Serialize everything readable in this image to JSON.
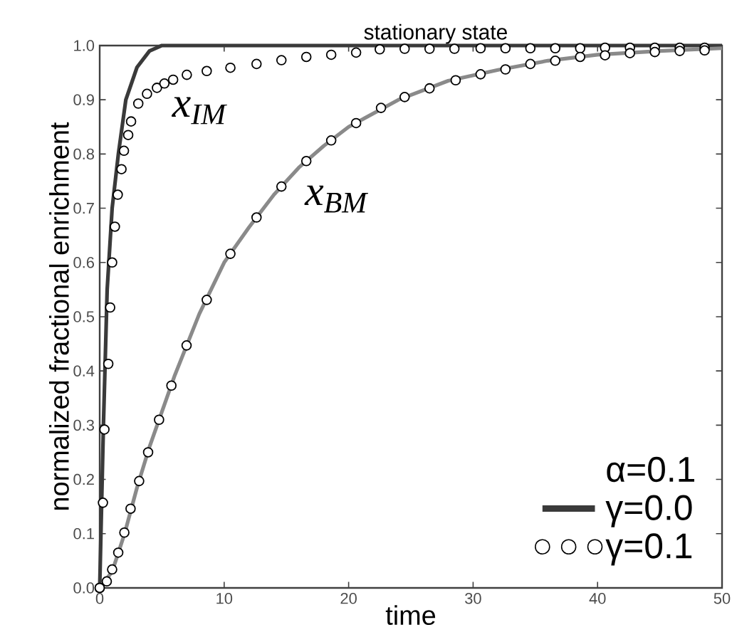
{
  "chart_data": {
    "type": "line",
    "xlabel": "time",
    "ylabel": "normalized fractional enrichment",
    "legend_title": "α=0.1",
    "legend": "bottom right",
    "grid": false,
    "xlim": [
      0,
      50
    ],
    "ylim": [
      0,
      1
    ],
    "xticks": [
      0,
      10,
      20,
      30,
      40,
      50
    ],
    "yticks": [
      {
        "value": 0,
        "label": "0.0"
      },
      0.1,
      0.2,
      0.3,
      0.4,
      0.5,
      0.6,
      0.7,
      0.8,
      0.9,
      {
        "value": 1,
        "label": "1.0"
      }
    ],
    "series": [
      {
        "name": "γ=0.0",
        "color": "#3a3a3a",
        "marker": "none",
        "x": [
          0,
          0.3,
          0.6,
          1.0,
          1.5,
          2.1,
          3,
          4,
          5,
          50
        ],
        "values": [
          0,
          0.3,
          0.55,
          0.7,
          0.8,
          0.9,
          0.96,
          0.99,
          1.0,
          1.0
        ]
      },
      {
        "color": "#8a8a8a",
        "marker": "none",
        "x": [
          0,
          1,
          2,
          3,
          4,
          5,
          6,
          8,
          10,
          12,
          14,
          16,
          18,
          20,
          24,
          28,
          32,
          36,
          40,
          45,
          50
        ],
        "values": [
          0,
          0.03,
          0.1,
          0.185,
          0.26,
          0.325,
          0.39,
          0.505,
          0.6,
          0.665,
          0.725,
          0.775,
          0.815,
          0.85,
          0.9,
          0.935,
          0.955,
          0.972,
          0.983,
          0.99,
          0.995
        ]
      },
      {
        "name": "γ=0.1",
        "type": "scatter",
        "color": "#000000",
        "marker": "circle",
        "x": [
          0,
          0.26,
          0.38,
          0.69,
          0.84,
          1.0,
          1.22,
          1.45,
          1.75,
          1.95,
          2.29,
          2.52,
          3.1,
          3.8,
          4.6,
          5.2,
          5.9,
          7.0,
          8.6,
          10.5,
          12.6,
          14.6,
          16.6,
          18.6,
          20.6,
          22.5,
          24.5,
          26.5,
          28.5,
          30.6,
          32.6,
          34.6,
          36.6,
          38.6,
          40.6,
          42.6,
          44.6,
          46.6,
          48.6
        ],
        "values": [
          0,
          0.157,
          0.292,
          0.413,
          0.517,
          0.6,
          0.666,
          0.725,
          0.772,
          0.806,
          0.835,
          0.86,
          0.893,
          0.911,
          0.922,
          0.93,
          0.937,
          0.946,
          0.953,
          0.959,
          0.966,
          0.973,
          0.979,
          0.983,
          0.987,
          0.993,
          0.994,
          0.994,
          0.994,
          0.995,
          0.995,
          0.995,
          0.995,
          0.995,
          0.996,
          0.996,
          0.996,
          0.996,
          0.996
        ]
      },
      {
        "type": "scatter",
        "color": "#000000",
        "marker": "circle",
        "x": [
          0,
          0.57,
          1.0,
          1.49,
          1.98,
          2.48,
          3.17,
          3.89,
          4.77,
          5.76,
          6.98,
          8.6,
          10.5,
          12.6,
          14.6,
          16.6,
          18.6,
          20.6,
          22.6,
          24.5,
          26.5,
          28.6,
          30.6,
          32.6,
          34.6,
          36.6,
          38.6,
          40.6,
          42.6,
          44.6,
          46.6,
          48.6
        ],
        "values": [
          0,
          0.012,
          0.034,
          0.065,
          0.102,
          0.146,
          0.197,
          0.25,
          0.31,
          0.373,
          0.447,
          0.531,
          0.616,
          0.683,
          0.74,
          0.787,
          0.825,
          0.857,
          0.885,
          0.905,
          0.921,
          0.936,
          0.947,
          0.956,
          0.966,
          0.972,
          0.979,
          0.982,
          0.986,
          0.988,
          0.99,
          0.991
        ]
      }
    ],
    "annotations": [
      {
        "text": "stationary state",
        "x": 27,
        "y": 1.0
      },
      "x$_{IM}$",
      "x$_{BM}$"
    ]
  }
}
